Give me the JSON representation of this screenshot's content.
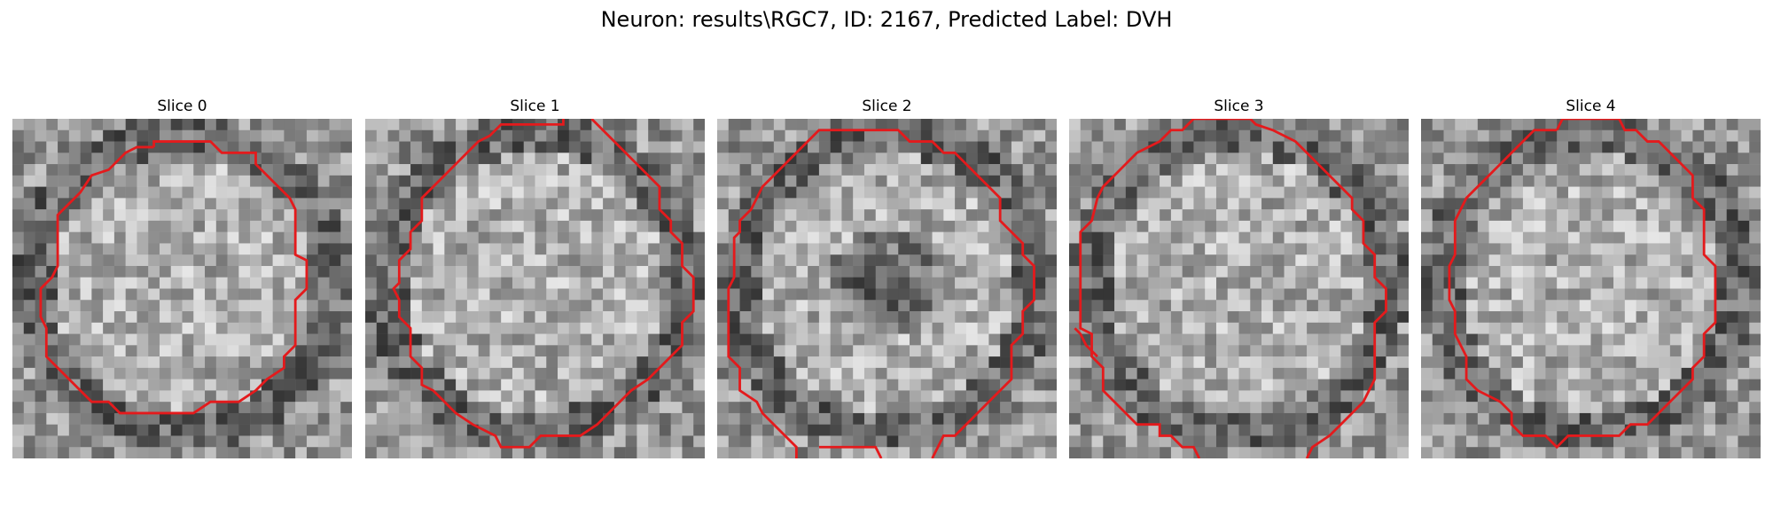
{
  "figure": {
    "suptitle": "Neuron: results\\RGC7, ID: 2167, Predicted Label: DVH",
    "contour_color": "#e41a1c",
    "colormap": "gray"
  },
  "panels": [
    {
      "title": "Slice 0",
      "dark_center": false
    },
    {
      "title": "Slice 1",
      "dark_center": false
    },
    {
      "title": "Slice 2",
      "dark_center": true
    },
    {
      "title": "Slice 3",
      "dark_center": false
    },
    {
      "title": "Slice 4",
      "dark_center": false
    }
  ]
}
